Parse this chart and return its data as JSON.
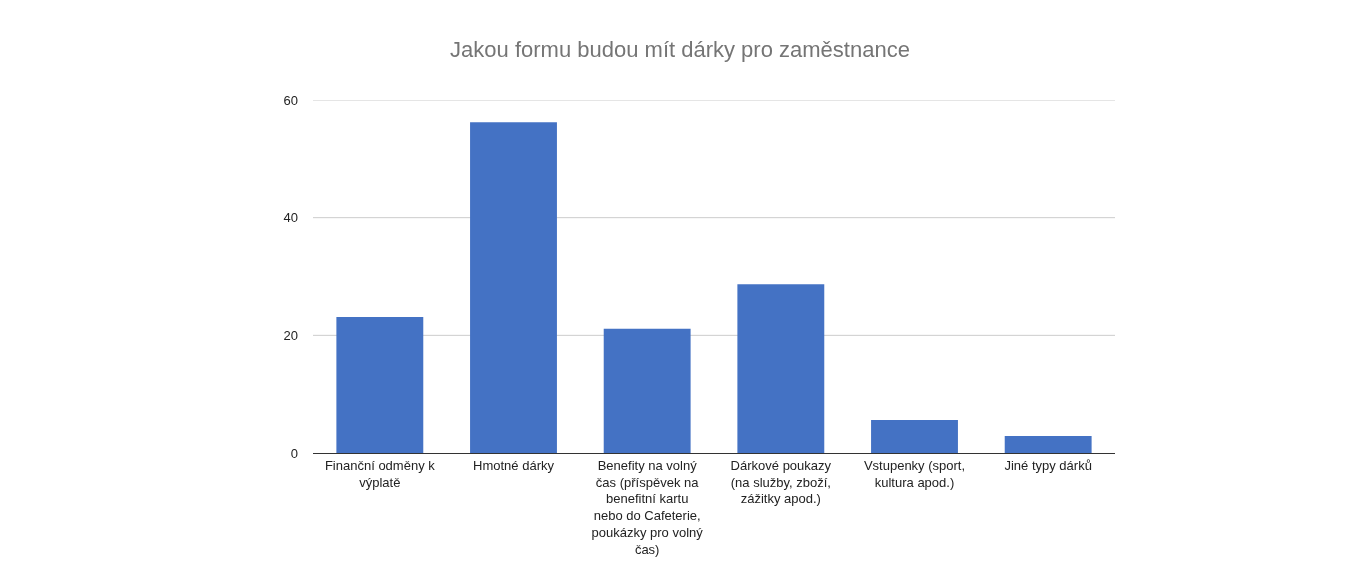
{
  "chart_data": {
    "type": "bar",
    "title": "Jakou formu budou mít dárky pro zaměstnance",
    "categories": [
      "Finanční odměny k výplatě",
      "Hmotné dárky",
      "Benefity na volný čas (příspěvek na benefitní kartu nebo do Cafeterie, poukázky pro volný čas)",
      "Dárkové poukazy (na služby, zboží, zážitky apod.)",
      "Vstupenky (sport, kultura apod.)",
      "Jiné typy dárků"
    ],
    "values": [
      23.1,
      56.2,
      21.1,
      28.7,
      5.6,
      2.9
    ],
    "color": "#4472c4",
    "ylim": [
      0,
      60
    ],
    "yticks": [
      0,
      20,
      40,
      60
    ],
    "grid": "y"
  }
}
